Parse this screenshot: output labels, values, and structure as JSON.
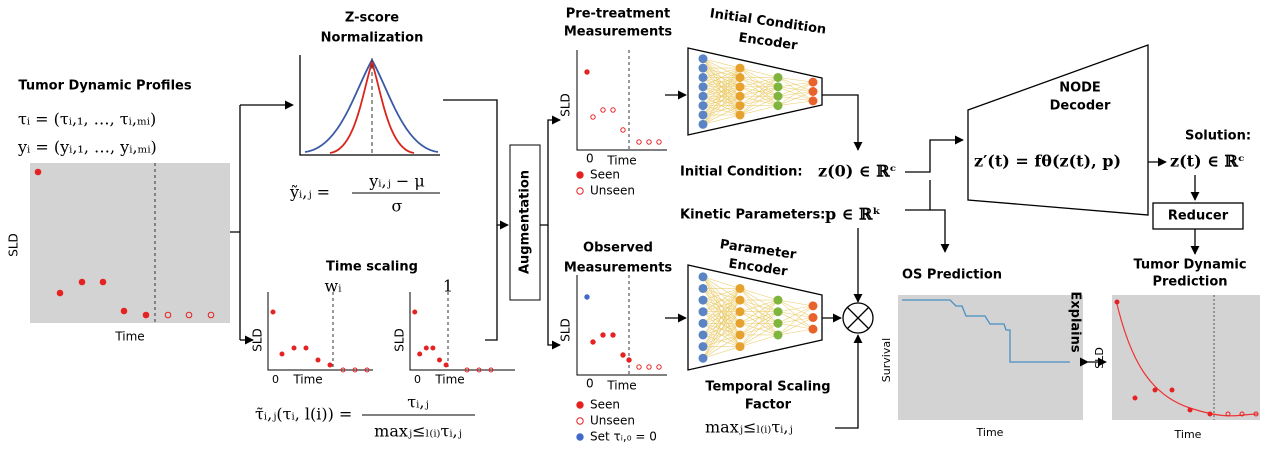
{
  "profiles": {
    "title": "Tumor Dynamic Profiles",
    "tau": "τᵢ = (τᵢ,₁, …, τᵢ,ₘᵢ)",
    "y": "yᵢ = (yᵢ,₁, …, yᵢ,ₘᵢ)",
    "y_label": "SLD",
    "x_label": "Time"
  },
  "zscore": {
    "title": [
      "Z-score",
      "Normalization"
    ],
    "lhs": "ỹᵢ,ⱼ =",
    "numerator": "yᵢ,ⱼ − μ",
    "denominator": "σ"
  },
  "time_scaling": {
    "title": "Time scaling",
    "plots": [
      {
        "y_label": "SLD",
        "x_label": "Time",
        "x0": "0",
        "marker": "wᵢ"
      },
      {
        "y_label": "SLD",
        "x_label": "Time",
        "x0": "0",
        "marker": "1"
      }
    ],
    "lhs": "τ̃ᵢ,ⱼ(τᵢ, l(i)) =",
    "numerator": "τᵢ,ⱼ",
    "denominator": "maxⱼ≤ₗ₍ᵢ₎τᵢ,ⱼ"
  },
  "augmentation": "Augmentation",
  "pretreatment": {
    "title": [
      "Pre-treatment",
      "Measurements"
    ],
    "y_label": "SLD",
    "x_label": "Time",
    "x0": "0",
    "legend": [
      "Seen",
      "Unseen"
    ]
  },
  "observed": {
    "title": [
      "Observed",
      "Measurements"
    ],
    "y_label": "SLD",
    "x_label": "Time",
    "x0": "0",
    "legend": [
      "Seen",
      "Unseen",
      "Set τᵢ,₀ = 0"
    ]
  },
  "encoders": [
    {
      "title": [
        "Initial Condition",
        "Encoder"
      ]
    },
    {
      "title": [
        "Parameter",
        "Encoder"
      ]
    }
  ],
  "initial_condition": {
    "label": "Initial Condition:",
    "math": "z(0) ∈ ℝᶜ"
  },
  "kinetic": {
    "label": "Kinetic Parameters:",
    "math": "p ∈ ℝᵏ"
  },
  "temporal": {
    "title": [
      "Temporal Scaling",
      "Factor"
    ],
    "math": "maxⱼ≤ₗ₍ᵢ₎τᵢ,ⱼ"
  },
  "decoder": {
    "title": [
      "NODE",
      "Decoder"
    ],
    "equation": "z′(t) = fθ(z(t), p)"
  },
  "solution": {
    "label": "Solution:",
    "math": "z(t) ∈ ℝᶜ"
  },
  "reducer": "Reducer",
  "os": {
    "title": "OS Prediction",
    "y_label": "Survival",
    "x_label": "Time"
  },
  "explains": "Explains",
  "prediction": {
    "title": [
      "Tumor Dynamic",
      "Prediction"
    ],
    "y_label": "SLD",
    "x_label": "Time"
  }
}
